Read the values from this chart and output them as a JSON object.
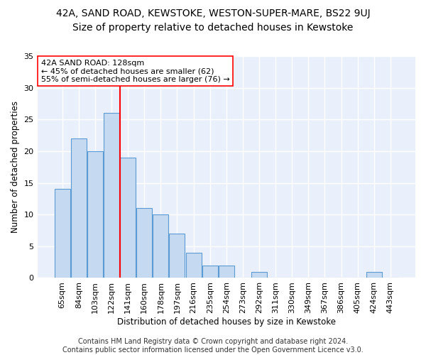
{
  "title": "42A, SAND ROAD, KEWSTOKE, WESTON-SUPER-MARE, BS22 9UJ",
  "subtitle": "Size of property relative to detached houses in Kewstoke",
  "xlabel": "Distribution of detached houses by size in Kewstoke",
  "ylabel": "Number of detached properties",
  "categories": [
    "65sqm",
    "84sqm",
    "103sqm",
    "122sqm",
    "141sqm",
    "160sqm",
    "178sqm",
    "197sqm",
    "216sqm",
    "235sqm",
    "254sqm",
    "273sqm",
    "292sqm",
    "311sqm",
    "330sqm",
    "349sqm",
    "367sqm",
    "386sqm",
    "405sqm",
    "424sqm",
    "443sqm"
  ],
  "values": [
    14,
    22,
    20,
    26,
    19,
    11,
    10,
    7,
    4,
    2,
    2,
    0,
    1,
    0,
    0,
    0,
    0,
    0,
    0,
    1,
    0
  ],
  "bar_color": "#c5d9f0",
  "bar_edge_color": "#5b9bd5",
  "property_line_x": 3.5,
  "property_line_color": "red",
  "annotation_line1": "42A SAND ROAD: 128sqm",
  "annotation_line2": "← 45% of detached houses are smaller (62)",
  "annotation_line3": "55% of semi-detached houses are larger (76) →",
  "annotation_box_color": "white",
  "annotation_box_edge_color": "red",
  "ylim": [
    0,
    35
  ],
  "yticks": [
    0,
    5,
    10,
    15,
    20,
    25,
    30,
    35
  ],
  "footnote": "Contains HM Land Registry data © Crown copyright and database right 2024.\nContains public sector information licensed under the Open Government Licence v3.0.",
  "background_color": "#eaf0fb",
  "grid_color": "white",
  "title_fontsize": 10,
  "subtitle_fontsize": 10,
  "annotation_fontsize": 8,
  "axis_label_fontsize": 8.5,
  "tick_fontsize": 8,
  "footnote_fontsize": 7
}
